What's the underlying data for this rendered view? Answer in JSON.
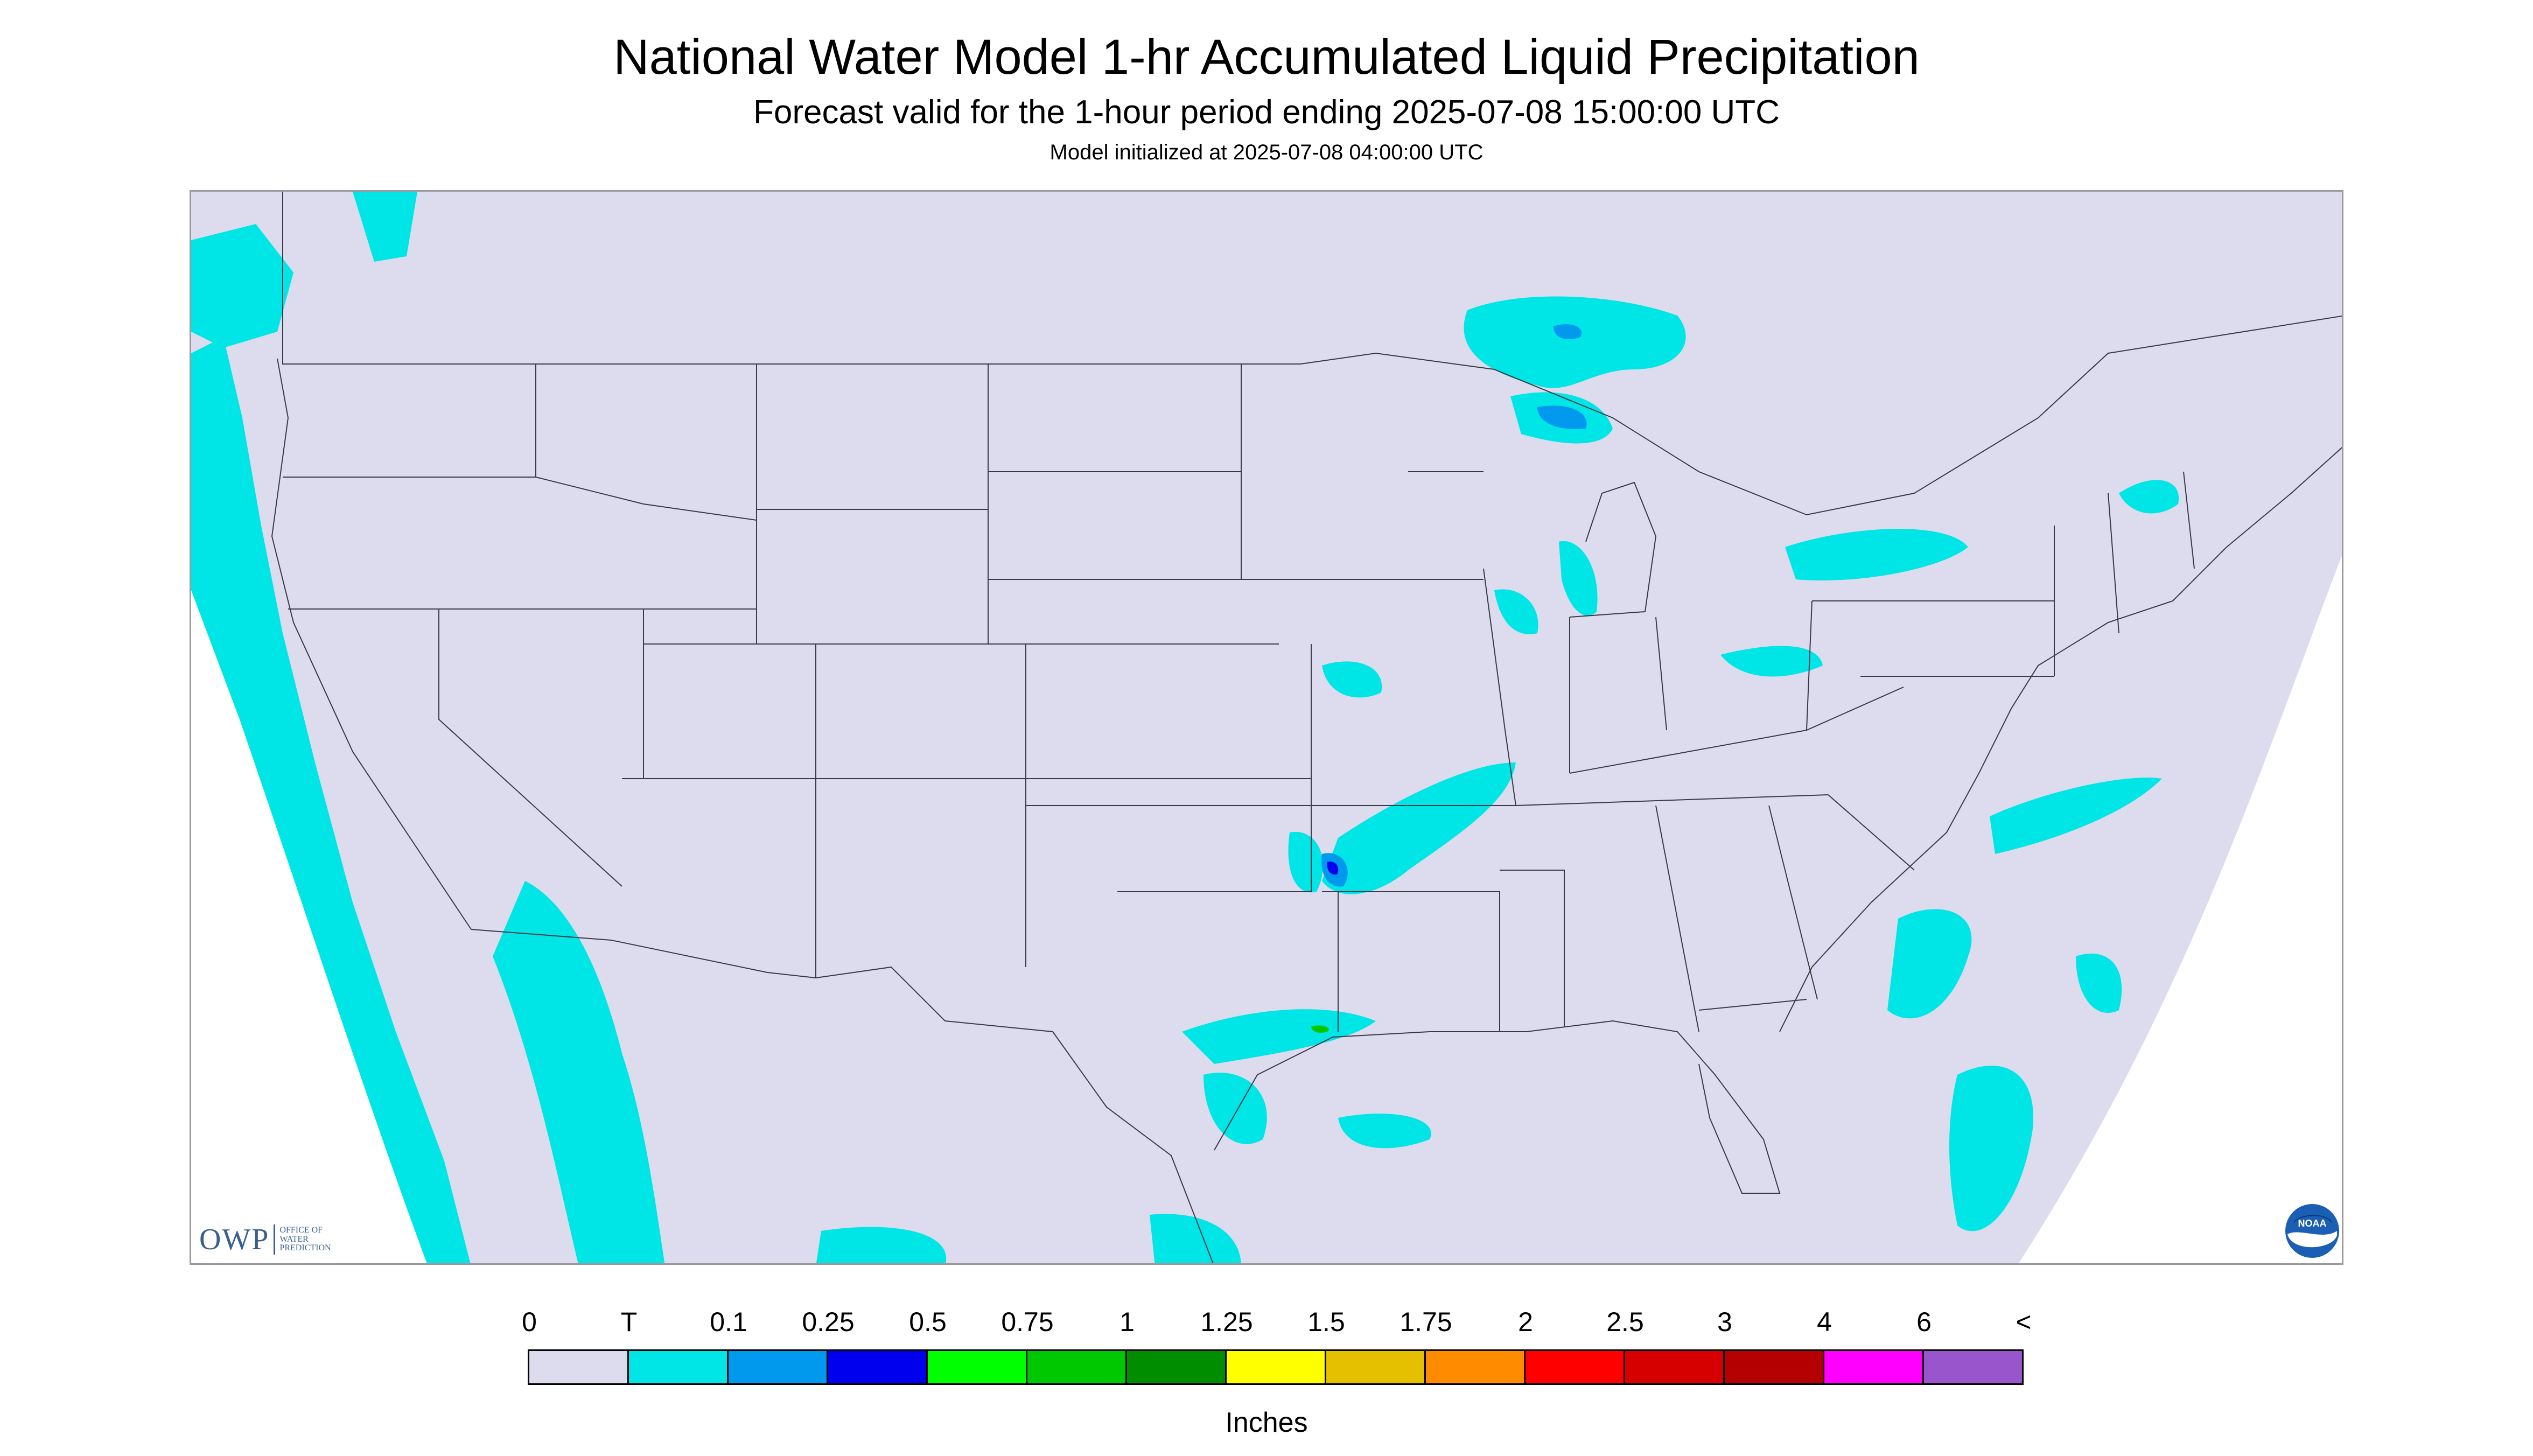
{
  "header": {
    "title": "National Water Model 1-hr Accumulated Liquid Precipitation",
    "subtitle": "Forecast valid for the 1-hour period ending 2025-07-08 15:00:00 UTC",
    "init": "Model initialized at 2025-07-08 04:00:00 UTC"
  },
  "map": {
    "background_color": "#dcdcee",
    "outside_color": "#ffffff",
    "border_color": "#3a3a44"
  },
  "branding": {
    "owp_letters": "OWP",
    "owp_line1": "OFFICE OF",
    "owp_line2": "WATER",
    "owp_line3": "PREDICTION",
    "noaa_text": "NOAA",
    "noaa_icon": "noaa-logo-icon"
  },
  "legend": {
    "tick_labels": [
      "0",
      "T",
      "0.1",
      "0.25",
      "0.5",
      "0.75",
      "1",
      "1.25",
      "1.5",
      "1.75",
      "2",
      "2.5",
      "3",
      "4",
      "6",
      "<"
    ],
    "colors": [
      "#dcdcee",
      "#00e5e5",
      "#0099ee",
      "#0000ee",
      "#00ff00",
      "#00c800",
      "#008e00",
      "#ffff00",
      "#e5c000",
      "#ff8c00",
      "#ff0000",
      "#d60000",
      "#b40000",
      "#ff00ff",
      "#9955cc"
    ],
    "units": "Inches"
  },
  "precip_colors": {
    "trace": "#00e5e5",
    "light": "#0099ee",
    "moderate": "#0000ee",
    "heavy": "#00c800"
  }
}
